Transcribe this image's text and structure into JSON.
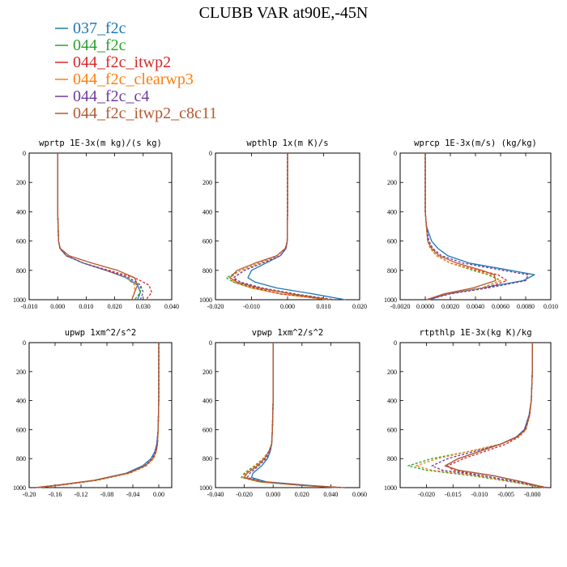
{
  "figure": {
    "title": "CLUBB VAR at90E,-45N"
  },
  "legend": {
    "entries": [
      {
        "name": "037_f2c",
        "color": "#1f77b4"
      },
      {
        "name": "044_f2c",
        "color": "#2ca02c"
      },
      {
        "name": "044_f2c_itwp2",
        "color": "#d62728"
      },
      {
        "name": "044_f2c_clearwp3",
        "color": "#ff7f0e"
      },
      {
        "name": "044_f2c_c4",
        "color": "#6a3d9a"
      },
      {
        "name": "044_f2c_itwp2_c8c11",
        "color": "#b5582f"
      }
    ]
  },
  "chart_data": [
    {
      "type": "line",
      "title": "wprtp  1E-3x(m kg)/(s kg)",
      "xlim": [
        -0.01,
        0.04
      ],
      "ylim": [
        0,
        1000
      ],
      "y_inverted": true,
      "xticks": [
        "-0.010",
        "0.000",
        "0.010",
        "0.020",
        "0.030",
        "0.040"
      ],
      "yticks": [
        "0",
        "200",
        "400",
        "600",
        "800",
        "1000"
      ],
      "y": [
        0,
        200,
        400,
        600,
        650,
        700,
        750,
        800,
        850,
        900,
        950,
        1000
      ],
      "series": [
        {
          "name": "037_f2c",
          "color": "#1f77b4",
          "dash": "solid",
          "x": [
            0,
            0,
            0,
            0.0003,
            0.0008,
            0.003,
            0.009,
            0.017,
            0.024,
            0.028,
            0.029,
            0.028
          ]
        },
        {
          "name": "044_f2c",
          "color": "#2ca02c",
          "dash": "dashed",
          "x": [
            0,
            0,
            0,
            0.0003,
            0.0008,
            0.003,
            0.009,
            0.017,
            0.025,
            0.029,
            0.029,
            0.027
          ]
        },
        {
          "name": "044_f2c_itwp2",
          "color": "#d62728",
          "dash": "dashed",
          "x": [
            0,
            0,
            0,
            0.0003,
            0.0008,
            0.003,
            0.009,
            0.018,
            0.027,
            0.032,
            0.033,
            0.031
          ]
        },
        {
          "name": "044_f2c_clearwp3",
          "color": "#ff7f0e",
          "dash": "dashed",
          "x": [
            0,
            0,
            0,
            0.0003,
            0.0008,
            0.003,
            0.009,
            0.017,
            0.024,
            0.027,
            0.027,
            0.026
          ]
        },
        {
          "name": "044_f2c_c4",
          "color": "#6a3d9a",
          "dash": "dashed",
          "x": [
            0,
            0,
            0,
            0.0003,
            0.0008,
            0.003,
            0.009,
            0.017,
            0.025,
            0.029,
            0.03,
            0.029
          ]
        },
        {
          "name": "044_f2c_itwp2_c8c11",
          "color": "#b5582f",
          "dash": "solid",
          "x": [
            0,
            0,
            0,
            0.0003,
            0.0009,
            0.004,
            0.012,
            0.021,
            0.027,
            0.028,
            0.027,
            0.026
          ]
        }
      ]
    },
    {
      "type": "line",
      "title": "wpthlp  1x(m K)/s",
      "xlim": [
        -0.02,
        0.02
      ],
      "ylim": [
        0,
        1000
      ],
      "y_inverted": true,
      "xticks": [
        "-0.020",
        "-0.010",
        "0.000",
        "0.010",
        "0.020"
      ],
      "yticks": [
        "0",
        "200",
        "400",
        "600",
        "800",
        "1000"
      ],
      "y": [
        0,
        200,
        400,
        600,
        650,
        700,
        750,
        800,
        850,
        880,
        920,
        960,
        1000
      ],
      "series": [
        {
          "name": "037_f2c",
          "color": "#1f77b4",
          "dash": "solid",
          "x": [
            0,
            0,
            0,
            -0.0001,
            -0.0004,
            -0.002,
            -0.006,
            -0.01,
            -0.011,
            -0.009,
            -0.003,
            0.007,
            0.016
          ]
        },
        {
          "name": "044_f2c",
          "color": "#2ca02c",
          "dash": "dashed",
          "x": [
            0,
            0,
            0,
            -0.0001,
            -0.0006,
            -0.003,
            -0.008,
            -0.013,
            -0.017,
            -0.015,
            -0.01,
            -0.002,
            0.011
          ]
        },
        {
          "name": "044_f2c_itwp2",
          "color": "#d62728",
          "dash": "dashed",
          "x": [
            0,
            0,
            0,
            -0.0001,
            -0.0005,
            -0.002,
            -0.007,
            -0.012,
            -0.015,
            -0.014,
            -0.009,
            -0.002,
            0.012
          ]
        },
        {
          "name": "044_f2c_clearwp3",
          "color": "#ff7f0e",
          "dash": "dashed",
          "x": [
            0,
            0,
            0,
            -0.0001,
            -0.0006,
            -0.003,
            -0.008,
            -0.013,
            -0.016,
            -0.015,
            -0.01,
            -0.002,
            0.011
          ]
        },
        {
          "name": "044_f2c_c4",
          "color": "#6a3d9a",
          "dash": "dashed",
          "x": [
            0,
            0,
            0,
            -0.0001,
            -0.0005,
            -0.002,
            -0.007,
            -0.012,
            -0.015,
            -0.013,
            -0.007,
            0.002,
            0.013
          ]
        },
        {
          "name": "044_f2c_itwp2_c8c11",
          "color": "#b5582f",
          "dash": "solid",
          "x": [
            0,
            0,
            0,
            -0.0001,
            -0.0006,
            -0.003,
            -0.009,
            -0.014,
            -0.016,
            -0.014,
            -0.008,
            0.001,
            0.012
          ]
        }
      ]
    },
    {
      "type": "line",
      "title": "wprcp  1E-3x(m/s) (kg/kg)",
      "xlim": [
        -0.002,
        0.01
      ],
      "ylim": [
        0,
        1000
      ],
      "y_inverted": true,
      "xticks": [
        "-0.0020",
        "0.0000",
        "0.0020",
        "0.0040",
        "0.0060",
        "0.0080",
        "0.010"
      ],
      "yticks": [
        "0",
        "200",
        "400",
        "600",
        "800",
        "1000"
      ],
      "y": [
        0,
        200,
        400,
        500,
        600,
        650,
        700,
        750,
        800,
        830,
        870,
        920,
        960,
        1000
      ],
      "series": [
        {
          "name": "037_f2c",
          "color": "#1f77b4",
          "dash": "solid",
          "x": [
            0,
            0,
            0,
            0.0001,
            0.0005,
            0.001,
            0.0018,
            0.0035,
            0.0068,
            0.0087,
            0.0078,
            0.0045,
            0.0018,
            0.0003
          ]
        },
        {
          "name": "044_f2c",
          "color": "#2ca02c",
          "dash": "dashed",
          "x": [
            0,
            0,
            0,
            0.0001,
            0.0002,
            0.0004,
            0.0009,
            0.002,
            0.0038,
            0.005,
            0.006,
            0.0045,
            0.0018,
            0.0002
          ]
        },
        {
          "name": "044_f2c_itwp2",
          "color": "#d62728",
          "dash": "dashed",
          "x": [
            0,
            0,
            0,
            0.0001,
            0.0002,
            0.0004,
            0.0009,
            0.002,
            0.0042,
            0.0058,
            0.0065,
            0.0048,
            0.0018,
            0.0001
          ]
        },
        {
          "name": "044_f2c_clearwp3",
          "color": "#ff7f0e",
          "dash": "dashed",
          "x": [
            0,
            0,
            0,
            0.0001,
            0.0002,
            0.0004,
            0.0009,
            0.002,
            0.004,
            0.0052,
            0.006,
            0.0045,
            0.0018,
            0.0002
          ]
        },
        {
          "name": "044_f2c_c4",
          "color": "#6a3d9a",
          "dash": "dashed",
          "x": [
            0,
            0,
            0,
            0.0001,
            0.0003,
            0.0006,
            0.0013,
            0.003,
            0.0062,
            0.0082,
            0.008,
            0.005,
            0.002,
            0.0002
          ]
        },
        {
          "name": "044_f2c_itwp2_c8c11",
          "color": "#b5582f",
          "dash": "solid",
          "x": [
            0,
            0,
            0,
            0.0001,
            0.0002,
            0.0005,
            0.0011,
            0.0025,
            0.0045,
            0.0055,
            0.0056,
            0.0038,
            0.0015,
            0.0001
          ]
        }
      ]
    },
    {
      "type": "line",
      "title": "upwp  1xm^2/s^2",
      "xlim": [
        -0.2,
        0.02
      ],
      "ylim": [
        0,
        1000
      ],
      "y_inverted": true,
      "xticks": [
        "-0.20",
        "-0.16",
        "-0.12",
        "-0.08",
        "-0.04",
        "0.00"
      ],
      "yticks": [
        "0",
        "200",
        "400",
        "600",
        "800",
        "1000"
      ],
      "y": [
        0,
        200,
        400,
        600,
        700,
        750,
        800,
        850,
        900,
        950,
        980,
        1000
      ],
      "series": [
        {
          "name": "037_f2c",
          "color": "#1f77b4",
          "dash": "solid",
          "x": [
            0,
            0,
            0,
            -0.001,
            -0.003,
            -0.006,
            -0.012,
            -0.025,
            -0.05,
            -0.1,
            -0.15,
            -0.19
          ]
        },
        {
          "name": "044_f2c",
          "color": "#2ca02c",
          "dash": "dashed",
          "x": [
            0,
            0,
            0,
            -0.001,
            -0.002,
            -0.004,
            -0.008,
            -0.02,
            -0.045,
            -0.095,
            -0.145,
            -0.185
          ]
        },
        {
          "name": "044_f2c_itwp2",
          "color": "#d62728",
          "dash": "dashed",
          "x": [
            0,
            0,
            0,
            -0.001,
            -0.002,
            -0.004,
            -0.008,
            -0.02,
            -0.045,
            -0.098,
            -0.15,
            -0.19
          ]
        },
        {
          "name": "044_f2c_clearwp3",
          "color": "#ff7f0e",
          "dash": "dashed",
          "x": [
            0,
            0,
            0,
            -0.001,
            -0.002,
            -0.004,
            -0.008,
            -0.019,
            -0.044,
            -0.095,
            -0.145,
            -0.185
          ]
        },
        {
          "name": "044_f2c_c4",
          "color": "#6a3d9a",
          "dash": "dashed",
          "x": [
            0,
            0,
            0,
            -0.001,
            -0.003,
            -0.005,
            -0.01,
            -0.022,
            -0.048,
            -0.098,
            -0.148,
            -0.188
          ]
        },
        {
          "name": "044_f2c_itwp2_c8c11",
          "color": "#b5582f",
          "dash": "solid",
          "x": [
            0,
            0,
            0,
            -0.001,
            -0.002,
            -0.004,
            -0.009,
            -0.021,
            -0.047,
            -0.1,
            -0.152,
            -0.19
          ]
        }
      ]
    },
    {
      "type": "line",
      "title": "vpwp  1xm^2/s^2",
      "xlim": [
        -0.04,
        0.06
      ],
      "ylim": [
        0,
        1000
      ],
      "y_inverted": true,
      "xticks": [
        "-0.040",
        "-0.020",
        "0.000",
        "0.020",
        "0.040",
        "0.060"
      ],
      "yticks": [
        "0",
        "200",
        "400",
        "600",
        "800",
        "1000"
      ],
      "y": [
        0,
        200,
        400,
        600,
        700,
        750,
        800,
        850,
        900,
        930,
        960,
        985,
        1000
      ],
      "series": [
        {
          "name": "037_f2c",
          "color": "#1f77b4",
          "dash": "solid",
          "x": [
            0,
            0,
            0,
            -0.0005,
            -0.001,
            -0.002,
            -0.004,
            -0.008,
            -0.014,
            -0.015,
            -0.005,
            0.025,
            0.048
          ]
        },
        {
          "name": "044_f2c",
          "color": "#2ca02c",
          "dash": "dashed",
          "x": [
            0,
            0,
            0,
            -0.0005,
            -0.001,
            -0.003,
            -0.007,
            -0.013,
            -0.02,
            -0.022,
            -0.01,
            0.02,
            0.045
          ]
        },
        {
          "name": "044_f2c_itwp2",
          "color": "#d62728",
          "dash": "dashed",
          "x": [
            0,
            0,
            0,
            -0.0005,
            -0.001,
            -0.003,
            -0.006,
            -0.012,
            -0.019,
            -0.021,
            -0.009,
            0.022,
            0.05
          ]
        },
        {
          "name": "044_f2c_clearwp3",
          "color": "#ff7f0e",
          "dash": "dashed",
          "x": [
            0,
            0,
            0,
            -0.0005,
            -0.001,
            -0.003,
            -0.007,
            -0.012,
            -0.019,
            -0.021,
            -0.01,
            0.02,
            0.045
          ]
        },
        {
          "name": "044_f2c_c4",
          "color": "#6a3d9a",
          "dash": "dashed",
          "x": [
            0,
            0,
            0,
            -0.0005,
            -0.001,
            -0.002,
            -0.005,
            -0.01,
            -0.016,
            -0.018,
            -0.007,
            0.022,
            0.047
          ]
        },
        {
          "name": "044_f2c_itwp2_c8c11",
          "color": "#b5582f",
          "dash": "solid",
          "x": [
            0,
            0,
            0,
            -0.0005,
            -0.001,
            -0.003,
            -0.006,
            -0.011,
            -0.018,
            -0.02,
            -0.008,
            0.021,
            0.046
          ]
        }
      ]
    },
    {
      "type": "line",
      "title": "rtpthlp  1E-3x(kg K)/kg",
      "xlim": [
        -0.025,
        0.0035
      ],
      "ylim": [
        0,
        1000
      ],
      "y_inverted": true,
      "xticks": [
        "-0.020",
        "-0.015",
        "-0.010",
        "-0.005",
        "-0.000"
      ],
      "yticks": [
        "0",
        "200",
        "400",
        "600",
        "800",
        "1000"
      ],
      "y": [
        0,
        200,
        400,
        500,
        600,
        650,
        700,
        750,
        800,
        850,
        880,
        920,
        960,
        1000
      ],
      "series": [
        {
          "name": "037_f2c",
          "color": "#1f77b4",
          "dash": "solid",
          "x": [
            0,
            0,
            -0.0002,
            -0.0006,
            -0.0015,
            -0.003,
            -0.006,
            -0.01,
            -0.014,
            -0.0165,
            -0.014,
            -0.007,
            -0.002,
            0.0025
          ]
        },
        {
          "name": "044_f2c",
          "color": "#2ca02c",
          "dash": "dashed",
          "x": [
            0,
            0,
            -0.0002,
            -0.0005,
            -0.0012,
            -0.0025,
            -0.006,
            -0.012,
            -0.019,
            -0.0235,
            -0.02,
            -0.011,
            -0.004,
            0.002
          ]
        },
        {
          "name": "044_f2c_itwp2",
          "color": "#d62728",
          "dash": "dashed",
          "x": [
            0,
            0,
            -0.0002,
            -0.0005,
            -0.0012,
            -0.0025,
            -0.005,
            -0.009,
            -0.013,
            -0.016,
            -0.015,
            -0.009,
            -0.003,
            0.003
          ]
        },
        {
          "name": "044_f2c_clearwp3",
          "color": "#ff7f0e",
          "dash": "dashed",
          "x": [
            0,
            0,
            -0.0002,
            -0.0005,
            -0.0012,
            -0.0025,
            -0.006,
            -0.012,
            -0.018,
            -0.022,
            -0.019,
            -0.01,
            -0.004,
            0.002
          ]
        },
        {
          "name": "044_f2c_c4",
          "color": "#6a3d9a",
          "dash": "dashed",
          "x": [
            0,
            0,
            -0.0002,
            -0.0006,
            -0.0015,
            -0.003,
            -0.006,
            -0.011,
            -0.016,
            -0.019,
            -0.017,
            -0.009,
            -0.003,
            0.0025
          ]
        },
        {
          "name": "044_f2c_itwp2_c8c11",
          "color": "#b5582f",
          "dash": "solid",
          "x": [
            0,
            0,
            -0.0002,
            -0.0005,
            -0.0013,
            -0.0028,
            -0.006,
            -0.01,
            -0.014,
            -0.0165,
            -0.014,
            -0.007,
            -0.002,
            0.0025
          ]
        }
      ]
    }
  ]
}
